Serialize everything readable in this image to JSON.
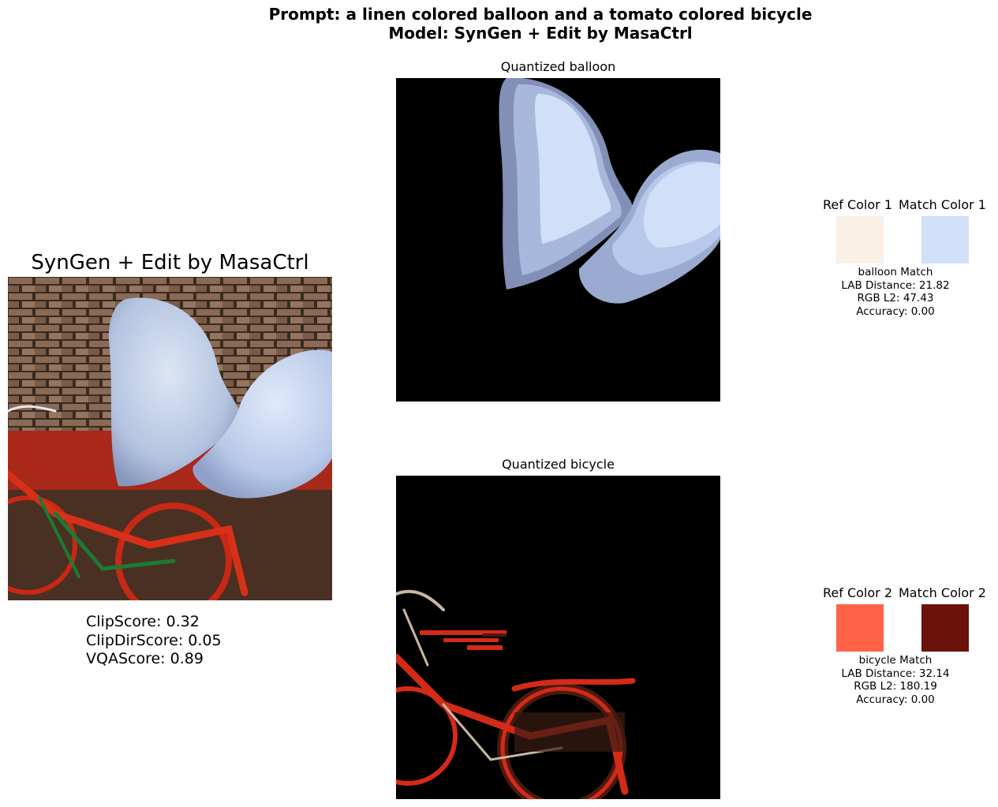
{
  "header": {
    "prompt_line": "Prompt: a linen colored balloon and a tomato colored bicycle",
    "model_line": "Model: SynGen + Edit by MasaCtrl"
  },
  "main_image": {
    "title": "SynGen + Edit by MasaCtrl",
    "scores": {
      "clip": "ClipScore: 0.32",
      "clipdir": "ClipDirScore: 0.05",
      "vqa": "VQAScore: 0.89"
    }
  },
  "quantized": [
    {
      "title": "Quantized balloon"
    },
    {
      "title": "Quantized bicycle"
    }
  ],
  "matches": [
    {
      "ref_label": "Ref Color 1",
      "match_label": "Match Color 1",
      "ref_color": "#faf0e6",
      "match_color": "#cfe0f8",
      "lines": [
        "balloon Match",
        "LAB Distance: 21.82",
        "RGB L2: 47.43",
        "Accuracy: 0.00"
      ]
    },
    {
      "ref_label": "Ref Color 2",
      "match_label": "Match Color 2",
      "ref_color": "#ff6347",
      "match_color": "#6b120a",
      "lines": [
        "bicycle Match",
        "LAB Distance: 32.14",
        "RGB L2: 180.19",
        "Accuracy: 0.00"
      ]
    }
  ]
}
